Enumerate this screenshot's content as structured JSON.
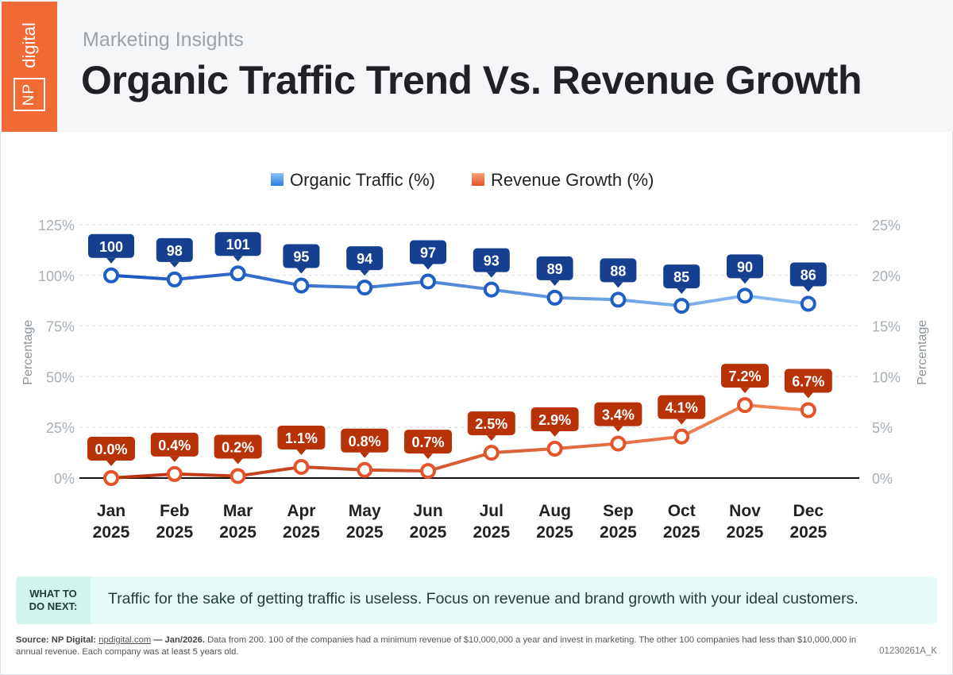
{
  "header": {
    "logo_np": "NP",
    "logo_digital": "digital",
    "subtitle": "Marketing Insights",
    "title": "Organic Traffic Trend Vs. Revenue Growth"
  },
  "chart_data": {
    "type": "line",
    "title": "Organic Traffic Trend Vs. Revenue Growth",
    "categories": [
      [
        "Jan",
        "2025"
      ],
      [
        "Feb",
        "2025"
      ],
      [
        "Mar",
        "2025"
      ],
      [
        "Apr",
        "2025"
      ],
      [
        "May",
        "2025"
      ],
      [
        "Jun",
        "2025"
      ],
      [
        "Jul",
        "2025"
      ],
      [
        "Aug",
        "2025"
      ],
      [
        "Sep",
        "2025"
      ],
      [
        "Oct",
        "2025"
      ],
      [
        "Nov",
        "2025"
      ],
      [
        "Dec",
        "2025"
      ]
    ],
    "ylabel_left": "Percentage",
    "ylabel_right": "Percentage",
    "ylim_left": [
      0,
      125
    ],
    "ylim_right": [
      0,
      25
    ],
    "yticks_left": [
      "0%",
      "25%",
      "50%",
      "75%",
      "100%",
      "125%"
    ],
    "yticks_right": [
      "0%",
      "5%",
      "10%",
      "15%",
      "20%",
      "25%"
    ],
    "legend_position": "top-center",
    "series": [
      {
        "name": "Organic Traffic (%)",
        "axis": "left",
        "values": [
          100,
          98,
          101,
          95,
          94,
          97,
          93,
          89,
          88,
          85,
          90,
          86
        ],
        "labels": [
          "100",
          "98",
          "101",
          "95",
          "94",
          "97",
          "93",
          "89",
          "88",
          "85",
          "90",
          "86"
        ],
        "color": "#1f5fc4",
        "label_color": "#163f8f"
      },
      {
        "name": "Revenue Growth (%)",
        "axis": "right",
        "values": [
          0.0,
          0.4,
          0.2,
          1.1,
          0.8,
          0.7,
          2.5,
          2.9,
          3.4,
          4.1,
          7.2,
          6.7
        ],
        "labels": [
          "0.0%",
          "0.4%",
          "0.2%",
          "1.1%",
          "0.8%",
          "0.7%",
          "2.5%",
          "2.9%",
          "3.4%",
          "4.1%",
          "7.2%",
          "6.7%"
        ],
        "color": "#e4532a",
        "label_color": "#b83208"
      }
    ]
  },
  "next": {
    "label_line1": "WHAT TO",
    "label_line2": "DO NEXT:",
    "text": "Traffic for the sake of getting traffic is useless. Focus on revenue and brand growth with your ideal customers."
  },
  "source": {
    "lead": "Source: NP Digital:",
    "link": "npdigital.com",
    "date": "— Jan/2026.",
    "body": "Data from 200. 100 of the companies had a minimum revenue of $10,000,000 a year and invest in marketing. The other 100 companies had less than $10,000,000 in annual revenue. Each company was at least 5 years old.",
    "code": "01230261A_K"
  }
}
